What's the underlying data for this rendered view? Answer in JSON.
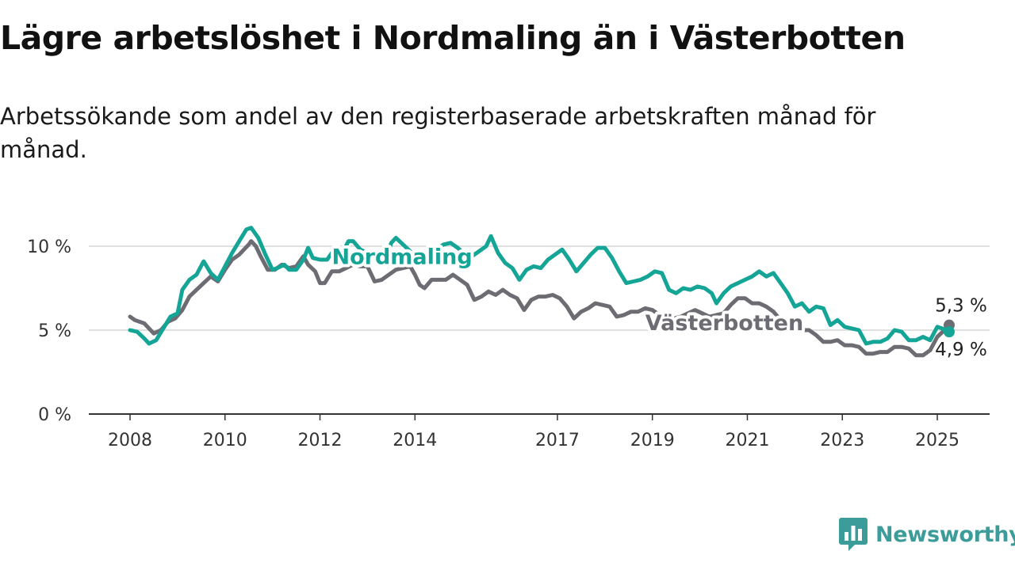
{
  "chart_data": {
    "type": "line",
    "title": "Lägre arbetslöshet i Nordmaling än i Västerbotten",
    "subtitle": "Arbetssökande som andel av den registerbaserade arbetskraften månad för månad.",
    "xlabel": "",
    "ylabel": "",
    "xlim": [
      2008,
      2026.1
    ],
    "ylim": [
      0,
      10.5
    ],
    "y_ticks": [
      {
        "value": 0,
        "label": "0 %"
      },
      {
        "value": 5,
        "label": "5 %"
      },
      {
        "value": 10,
        "label": "10 %"
      }
    ],
    "x_ticks": [
      {
        "value": 2008,
        "label": "2008"
      },
      {
        "value": 2010,
        "label": "2010"
      },
      {
        "value": 2012,
        "label": "2012"
      },
      {
        "value": 2014,
        "label": "2014"
      },
      {
        "value": 2017,
        "label": "2017"
      },
      {
        "value": 2019,
        "label": "2019"
      },
      {
        "value": 2021,
        "label": "2021"
      },
      {
        "value": 2023,
        "label": "2023"
      },
      {
        "value": 2025,
        "label": "2025"
      }
    ],
    "grid": "horizontal",
    "legend": "inline labels",
    "series": [
      {
        "name": "Västerbotten",
        "color": "#6e6c73",
        "end_label": "5,3 %",
        "points": [
          [
            2008.0,
            5.8
          ],
          [
            2008.1,
            5.6
          ],
          [
            2008.3,
            5.4
          ],
          [
            2008.4,
            5.1
          ],
          [
            2008.5,
            4.8
          ],
          [
            2008.65,
            5.0
          ],
          [
            2008.8,
            5.5
          ],
          [
            2008.95,
            5.7
          ],
          [
            2009.1,
            6.2
          ],
          [
            2009.25,
            7.0
          ],
          [
            2009.4,
            7.4
          ],
          [
            2009.55,
            7.8
          ],
          [
            2009.7,
            8.2
          ],
          [
            2009.85,
            7.9
          ],
          [
            2010.0,
            8.6
          ],
          [
            2010.15,
            9.2
          ],
          [
            2010.3,
            9.5
          ],
          [
            2010.4,
            9.8
          ],
          [
            2010.5,
            10.1
          ],
          [
            2010.55,
            10.3
          ],
          [
            2010.65,
            10.0
          ],
          [
            2010.75,
            9.4
          ],
          [
            2010.9,
            8.6
          ],
          [
            2011.05,
            8.6
          ],
          [
            2011.2,
            8.9
          ],
          [
            2011.35,
            8.7
          ],
          [
            2011.5,
            8.8
          ],
          [
            2011.65,
            9.4
          ],
          [
            2011.75,
            8.9
          ],
          [
            2011.9,
            8.5
          ],
          [
            2012.0,
            7.8
          ],
          [
            2012.1,
            7.8
          ],
          [
            2012.25,
            8.5
          ],
          [
            2012.4,
            8.5
          ],
          [
            2012.55,
            8.7
          ],
          [
            2012.7,
            8.9
          ],
          [
            2012.85,
            8.8
          ],
          [
            2013.0,
            8.8
          ],
          [
            2013.15,
            7.9
          ],
          [
            2013.3,
            8.0
          ],
          [
            2013.45,
            8.3
          ],
          [
            2013.6,
            8.6
          ],
          [
            2013.75,
            8.7
          ],
          [
            2013.9,
            8.8
          ],
          [
            2014.0,
            8.3
          ],
          [
            2014.1,
            7.7
          ],
          [
            2014.2,
            7.5
          ],
          [
            2014.35,
            8.0
          ],
          [
            2014.5,
            8.0
          ],
          [
            2014.65,
            8.0
          ],
          [
            2014.8,
            8.3
          ],
          [
            2014.95,
            8.0
          ],
          [
            2015.1,
            7.7
          ],
          [
            2015.25,
            6.8
          ],
          [
            2015.4,
            7.0
          ],
          [
            2015.55,
            7.3
          ],
          [
            2015.7,
            7.1
          ],
          [
            2015.85,
            7.4
          ],
          [
            2016.0,
            7.1
          ],
          [
            2016.15,
            6.9
          ],
          [
            2016.3,
            6.2
          ],
          [
            2016.45,
            6.8
          ],
          [
            2016.6,
            7.0
          ],
          [
            2016.75,
            7.0
          ],
          [
            2016.9,
            7.1
          ],
          [
            2017.05,
            6.9
          ],
          [
            2017.2,
            6.4
          ],
          [
            2017.35,
            5.7
          ],
          [
            2017.5,
            6.1
          ],
          [
            2017.65,
            6.3
          ],
          [
            2017.8,
            6.6
          ],
          [
            2017.95,
            6.5
          ],
          [
            2018.1,
            6.4
          ],
          [
            2018.25,
            5.8
          ],
          [
            2018.4,
            5.9
          ],
          [
            2018.55,
            6.1
          ],
          [
            2018.7,
            6.1
          ],
          [
            2018.85,
            6.3
          ],
          [
            2019.0,
            6.2
          ],
          [
            2019.15,
            5.9
          ],
          [
            2019.3,
            5.7
          ],
          [
            2019.45,
            5.7
          ],
          [
            2019.6,
            5.8
          ],
          [
            2019.75,
            6.0
          ],
          [
            2019.9,
            6.2
          ],
          [
            2020.05,
            6.0
          ],
          [
            2020.2,
            5.8
          ],
          [
            2020.35,
            5.9
          ],
          [
            2020.5,
            6.0
          ],
          [
            2020.65,
            6.5
          ],
          [
            2020.8,
            6.9
          ],
          [
            2020.95,
            6.9
          ],
          [
            2021.1,
            6.6
          ],
          [
            2021.25,
            6.6
          ],
          [
            2021.4,
            6.4
          ],
          [
            2021.55,
            6.1
          ],
          [
            2021.7,
            5.6
          ],
          [
            2021.85,
            5.4
          ],
          [
            2022.0,
            5.0
          ],
          [
            2022.15,
            5.0
          ],
          [
            2022.3,
            5.0
          ],
          [
            2022.45,
            4.7
          ],
          [
            2022.6,
            4.3
          ],
          [
            2022.75,
            4.3
          ],
          [
            2022.9,
            4.4
          ],
          [
            2023.05,
            4.1
          ],
          [
            2023.2,
            4.1
          ],
          [
            2023.35,
            4.0
          ],
          [
            2023.5,
            3.6
          ],
          [
            2023.65,
            3.6
          ],
          [
            2023.8,
            3.7
          ],
          [
            2023.95,
            3.7
          ],
          [
            2024.1,
            4.0
          ],
          [
            2024.25,
            4.0
          ],
          [
            2024.4,
            3.9
          ],
          [
            2024.55,
            3.5
          ],
          [
            2024.7,
            3.5
          ],
          [
            2024.85,
            3.8
          ],
          [
            2025.0,
            4.6
          ],
          [
            2025.15,
            5.0
          ],
          [
            2025.25,
            5.3
          ]
        ]
      },
      {
        "name": "Nordmaling",
        "color": "#14a597",
        "end_label": "4,9 %",
        "points": [
          [
            2008.0,
            5.0
          ],
          [
            2008.15,
            4.9
          ],
          [
            2008.3,
            4.5
          ],
          [
            2008.4,
            4.2
          ],
          [
            2008.55,
            4.4
          ],
          [
            2008.7,
            5.1
          ],
          [
            2008.85,
            5.8
          ],
          [
            2009.0,
            6.0
          ],
          [
            2009.1,
            7.4
          ],
          [
            2009.25,
            8.0
          ],
          [
            2009.4,
            8.3
          ],
          [
            2009.55,
            9.1
          ],
          [
            2009.7,
            8.4
          ],
          [
            2009.85,
            8.0
          ],
          [
            2010.0,
            8.8
          ],
          [
            2010.15,
            9.6
          ],
          [
            2010.3,
            10.3
          ],
          [
            2010.45,
            11.0
          ],
          [
            2010.55,
            11.1
          ],
          [
            2010.7,
            10.5
          ],
          [
            2010.85,
            9.5
          ],
          [
            2011.0,
            8.6
          ],
          [
            2011.1,
            8.7
          ],
          [
            2011.25,
            8.9
          ],
          [
            2011.35,
            8.6
          ],
          [
            2011.5,
            8.6
          ],
          [
            2011.65,
            9.2
          ],
          [
            2011.75,
            9.9
          ],
          [
            2011.85,
            9.3
          ],
          [
            2012.0,
            9.2
          ],
          [
            2012.15,
            9.2
          ],
          [
            2012.3,
            9.8
          ],
          [
            2012.45,
            9.5
          ],
          [
            2012.6,
            10.3
          ],
          [
            2012.7,
            10.3
          ],
          [
            2012.85,
            9.8
          ],
          [
            2013.0,
            9.6
          ],
          [
            2013.1,
            9.4
          ],
          [
            2013.25,
            9.5
          ],
          [
            2013.4,
            9.3
          ],
          [
            2013.5,
            10.2
          ],
          [
            2013.6,
            10.5
          ],
          [
            2013.75,
            10.1
          ],
          [
            2013.9,
            9.7
          ],
          [
            2014.0,
            9.3
          ],
          [
            2014.15,
            9.4
          ],
          [
            2014.3,
            9.6
          ],
          [
            2014.45,
            9.8
          ],
          [
            2014.6,
            10.1
          ],
          [
            2014.75,
            10.2
          ],
          [
            2014.9,
            9.9
          ],
          [
            2015.05,
            9.5
          ],
          [
            2015.2,
            9.4
          ],
          [
            2015.35,
            9.7
          ],
          [
            2015.5,
            10.0
          ],
          [
            2015.6,
            10.6
          ],
          [
            2015.75,
            9.6
          ],
          [
            2015.9,
            9.0
          ],
          [
            2016.05,
            8.7
          ],
          [
            2016.2,
            8.0
          ],
          [
            2016.35,
            8.6
          ],
          [
            2016.5,
            8.8
          ],
          [
            2016.65,
            8.7
          ],
          [
            2016.8,
            9.2
          ],
          [
            2016.95,
            9.5
          ],
          [
            2017.1,
            9.8
          ],
          [
            2017.25,
            9.2
          ],
          [
            2017.4,
            8.5
          ],
          [
            2017.55,
            9.0
          ],
          [
            2017.7,
            9.5
          ],
          [
            2017.85,
            9.9
          ],
          [
            2018.0,
            9.9
          ],
          [
            2018.15,
            9.3
          ],
          [
            2018.3,
            8.5
          ],
          [
            2018.45,
            7.8
          ],
          [
            2018.6,
            7.9
          ],
          [
            2018.75,
            8.0
          ],
          [
            2018.9,
            8.2
          ],
          [
            2019.05,
            8.5
          ],
          [
            2019.2,
            8.4
          ],
          [
            2019.35,
            7.4
          ],
          [
            2019.5,
            7.2
          ],
          [
            2019.65,
            7.5
          ],
          [
            2019.8,
            7.4
          ],
          [
            2019.95,
            7.6
          ],
          [
            2020.1,
            7.5
          ],
          [
            2020.25,
            7.2
          ],
          [
            2020.35,
            6.6
          ],
          [
            2020.5,
            7.2
          ],
          [
            2020.65,
            7.6
          ],
          [
            2020.8,
            7.8
          ],
          [
            2020.95,
            8.0
          ],
          [
            2021.1,
            8.2
          ],
          [
            2021.25,
            8.5
          ],
          [
            2021.4,
            8.2
          ],
          [
            2021.55,
            8.4
          ],
          [
            2021.7,
            7.8
          ],
          [
            2021.85,
            7.2
          ],
          [
            2022.0,
            6.4
          ],
          [
            2022.15,
            6.6
          ],
          [
            2022.3,
            6.1
          ],
          [
            2022.45,
            6.4
          ],
          [
            2022.6,
            6.3
          ],
          [
            2022.75,
            5.3
          ],
          [
            2022.9,
            5.6
          ],
          [
            2023.05,
            5.2
          ],
          [
            2023.2,
            5.1
          ],
          [
            2023.35,
            5.0
          ],
          [
            2023.5,
            4.2
          ],
          [
            2023.65,
            4.3
          ],
          [
            2023.8,
            4.3
          ],
          [
            2023.95,
            4.5
          ],
          [
            2024.1,
            5.0
          ],
          [
            2024.25,
            4.9
          ],
          [
            2024.4,
            4.4
          ],
          [
            2024.55,
            4.4
          ],
          [
            2024.7,
            4.6
          ],
          [
            2024.85,
            4.4
          ],
          [
            2025.0,
            5.2
          ],
          [
            2025.1,
            5.1
          ],
          [
            2025.25,
            4.9
          ]
        ]
      }
    ]
  },
  "brand": {
    "name": "Newsworthy",
    "icon": "newsworthy-logo-icon",
    "color": "#3c9c9a"
  }
}
